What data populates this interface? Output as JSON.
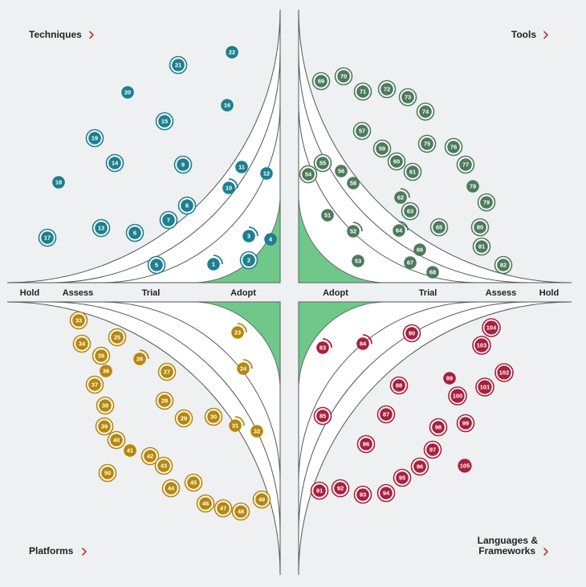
{
  "rings": [
    "Adopt",
    "Trial",
    "Assess",
    "Hold"
  ],
  "quadrants": {
    "techniques": {
      "label": "Techniques",
      "color": "#1d7f8f"
    },
    "tools": {
      "label": "Tools",
      "color": "#4d7a5c"
    },
    "platforms": {
      "label": "Platforms",
      "color": "#b8860b"
    },
    "languages": {
      "label_line1": "Languages &",
      "label_line2": "Frameworks",
      "color": "#a8203d"
    }
  },
  "colors": {
    "adopt_fill": "#6fc78a",
    "outer_bg": "#eef0f1",
    "ring_stroke": "#555555",
    "arrow": "#c0392b"
  },
  "blips": [
    {
      "n": "1",
      "q": "techniques"
    },
    {
      "n": "2",
      "q": "techniques"
    },
    {
      "n": "3",
      "q": "techniques"
    },
    {
      "n": "4",
      "q": "techniques"
    },
    {
      "n": "5",
      "q": "techniques"
    },
    {
      "n": "6",
      "q": "techniques"
    },
    {
      "n": "7",
      "q": "techniques"
    },
    {
      "n": "8",
      "q": "techniques"
    },
    {
      "n": "9",
      "q": "techniques"
    },
    {
      "n": "10",
      "q": "techniques"
    },
    {
      "n": "11",
      "q": "techniques"
    },
    {
      "n": "12",
      "q": "techniques"
    },
    {
      "n": "13",
      "q": "techniques"
    },
    {
      "n": "14",
      "q": "techniques"
    },
    {
      "n": "15",
      "q": "techniques"
    },
    {
      "n": "16",
      "q": "techniques"
    },
    {
      "n": "17",
      "q": "techniques"
    },
    {
      "n": "18",
      "q": "techniques"
    },
    {
      "n": "19",
      "q": "techniques"
    },
    {
      "n": "20",
      "q": "techniques"
    },
    {
      "n": "21",
      "q": "techniques"
    },
    {
      "n": "22",
      "q": "techniques"
    },
    {
      "n": "23",
      "q": "platforms"
    },
    {
      "n": "24",
      "q": "platforms"
    },
    {
      "n": "25",
      "q": "platforms"
    },
    {
      "n": "26",
      "q": "platforms"
    },
    {
      "n": "27",
      "q": "platforms"
    },
    {
      "n": "28",
      "q": "platforms"
    },
    {
      "n": "29",
      "q": "platforms"
    },
    {
      "n": "30",
      "q": "platforms"
    },
    {
      "n": "31",
      "q": "platforms"
    },
    {
      "n": "32",
      "q": "platforms"
    },
    {
      "n": "33",
      "q": "platforms"
    },
    {
      "n": "34",
      "q": "platforms"
    },
    {
      "n": "35",
      "q": "platforms"
    },
    {
      "n": "36",
      "q": "platforms"
    },
    {
      "n": "37",
      "q": "platforms"
    },
    {
      "n": "38",
      "q": "platforms"
    },
    {
      "n": "39",
      "q": "platforms"
    },
    {
      "n": "40",
      "q": "platforms"
    },
    {
      "n": "41",
      "q": "platforms"
    },
    {
      "n": "42",
      "q": "platforms"
    },
    {
      "n": "43",
      "q": "platforms"
    },
    {
      "n": "44",
      "q": "platforms"
    },
    {
      "n": "45",
      "q": "platforms"
    },
    {
      "n": "46",
      "q": "platforms"
    },
    {
      "n": "47",
      "q": "platforms"
    },
    {
      "n": "48",
      "q": "platforms"
    },
    {
      "n": "49",
      "q": "platforms"
    },
    {
      "n": "50",
      "q": "platforms"
    },
    {
      "n": "51",
      "q": "tools"
    },
    {
      "n": "52",
      "q": "tools"
    },
    {
      "n": "53",
      "q": "tools"
    },
    {
      "n": "54",
      "q": "tools"
    },
    {
      "n": "55",
      "q": "tools"
    },
    {
      "n": "56",
      "q": "tools"
    },
    {
      "n": "57",
      "q": "tools"
    },
    {
      "n": "58",
      "q": "tools"
    },
    {
      "n": "59",
      "q": "tools"
    },
    {
      "n": "60",
      "q": "tools"
    },
    {
      "n": "61",
      "q": "tools"
    },
    {
      "n": "62",
      "q": "tools"
    },
    {
      "n": "63",
      "q": "tools"
    },
    {
      "n": "64",
      "q": "tools"
    },
    {
      "n": "65",
      "q": "tools"
    },
    {
      "n": "66",
      "q": "tools"
    },
    {
      "n": "67",
      "q": "tools"
    },
    {
      "n": "68",
      "q": "tools"
    },
    {
      "n": "69",
      "q": "tools"
    },
    {
      "n": "70",
      "q": "tools"
    },
    {
      "n": "71",
      "q": "tools"
    },
    {
      "n": "72",
      "q": "tools"
    },
    {
      "n": "73",
      "q": "tools"
    },
    {
      "n": "74",
      "q": "tools"
    },
    {
      "n": "75",
      "q": "tools"
    },
    {
      "n": "76",
      "q": "tools"
    },
    {
      "n": "77",
      "q": "tools"
    },
    {
      "n": "78",
      "q": "tools"
    },
    {
      "n": "79",
      "q": "tools"
    },
    {
      "n": "80",
      "q": "tools"
    },
    {
      "n": "81",
      "q": "tools"
    },
    {
      "n": "82",
      "q": "tools"
    },
    {
      "n": "83",
      "q": "languages"
    },
    {
      "n": "84",
      "q": "languages"
    },
    {
      "n": "85",
      "q": "languages"
    },
    {
      "n": "86",
      "q": "languages"
    },
    {
      "n": "87",
      "q": "languages"
    },
    {
      "n": "88",
      "q": "languages"
    },
    {
      "n": "89",
      "q": "languages"
    },
    {
      "n": "90",
      "q": "languages"
    },
    {
      "n": "91",
      "q": "languages"
    },
    {
      "n": "92",
      "q": "languages"
    },
    {
      "n": "93",
      "q": "languages"
    },
    {
      "n": "94",
      "q": "languages"
    },
    {
      "n": "95",
      "q": "languages"
    },
    {
      "n": "96",
      "q": "languages"
    },
    {
      "n": "97",
      "q": "languages"
    },
    {
      "n": "98",
      "q": "languages"
    },
    {
      "n": "99",
      "q": "languages"
    },
    {
      "n": "100",
      "q": "languages"
    },
    {
      "n": "101",
      "q": "languages"
    },
    {
      "n": "102",
      "q": "languages"
    },
    {
      "n": "103",
      "q": "languages"
    },
    {
      "n": "104",
      "q": "languages"
    },
    {
      "n": "105",
      "q": "languages"
    }
  ]
}
